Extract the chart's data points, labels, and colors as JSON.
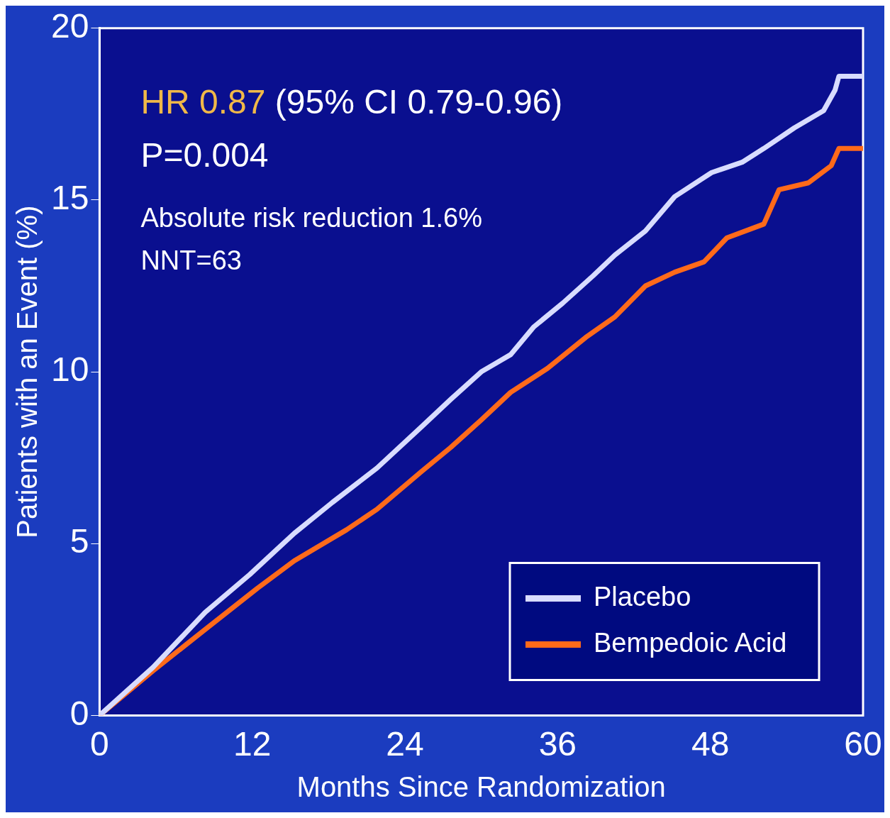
{
  "chart_data": {
    "type": "line",
    "xlabel": "Months Since Randomization",
    "ylabel": "Patients with an Event (%)",
    "annotations": [
      "HR 0.87",
      "(95% CI 0.79-0.96)",
      "P=0.004",
      "Absolute risk reduction 1.6%",
      "NNT=63"
    ],
    "xlim": [
      0,
      60
    ],
    "xticks": [
      0,
      12,
      24,
      36,
      48,
      60
    ],
    "ylim": [
      0,
      20
    ],
    "yticks": [
      0,
      5,
      10,
      15,
      20
    ],
    "grid": false,
    "legend": "bottom right",
    "series": [
      {
        "name": "Placebo",
        "color": "#d8dcff",
        "x": [
          0,
          4.2,
          8.3,
          11.8,
          15.3,
          18.3,
          21.8,
          25.3,
          27.6,
          30,
          32.3,
          34.1,
          36.4,
          38.8,
          40.5,
          42.9,
          45.2,
          48.1,
          50.5,
          52.2,
          54.6,
          56.9,
          57.8,
          58.1,
          60
        ],
        "values": [
          0,
          1.4,
          3.0,
          4.1,
          5.3,
          6.2,
          7.2,
          8.4,
          9.2,
          10.0,
          10.5,
          11.3,
          12.0,
          12.8,
          13.4,
          14.1,
          15.1,
          15.8,
          16.1,
          16.5,
          17.1,
          17.6,
          18.2,
          18.6,
          18.6
        ]
      },
      {
        "name": "Bempedoic Acid",
        "color": "#ff6a1a",
        "x": [
          0,
          4.2,
          8.3,
          12.4,
          15.3,
          19.4,
          21.8,
          25.3,
          27.6,
          30,
          32.3,
          35.2,
          38.2,
          40.5,
          42.9,
          45.2,
          47.5,
          49.3,
          52.2,
          53.4,
          55.7,
          57.5,
          58.1,
          60
        ],
        "values": [
          0,
          1.3,
          2.5,
          3.7,
          4.5,
          5.4,
          6.0,
          7.1,
          7.8,
          8.6,
          9.4,
          10.1,
          11.0,
          11.6,
          12.5,
          12.9,
          13.2,
          13.9,
          14.3,
          15.3,
          15.5,
          16.0,
          16.5,
          16.5
        ]
      }
    ]
  }
}
